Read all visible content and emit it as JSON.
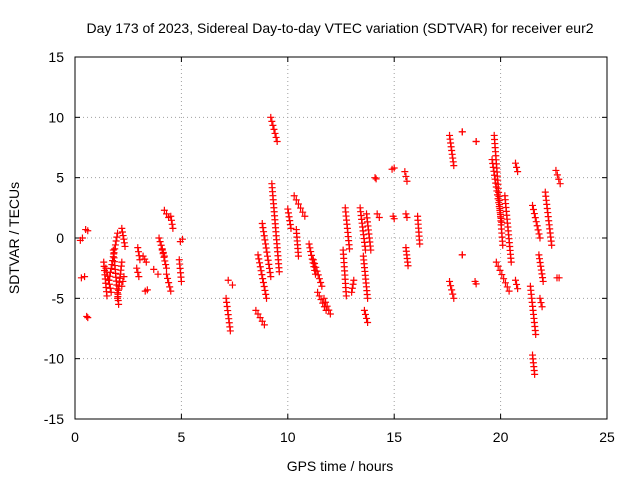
{
  "chart_data": {
    "type": "scatter",
    "title": "Day 173 of 2023, Sidereal Day-to-day VTEC variation (SDTVAR) for receiver eur2",
    "xlabel": "GPS time / hours",
    "ylabel": "SDTVAR / TECUs",
    "xlim": [
      0,
      25
    ],
    "ylim": [
      -15,
      15
    ],
    "xticks": [
      0,
      5,
      10,
      15,
      20,
      25
    ],
    "yticks": [
      -15,
      -10,
      -5,
      0,
      5,
      10,
      15
    ],
    "x_tick_labels": [
      "0",
      "5",
      "10",
      "15",
      "20",
      "25"
    ],
    "y_tick_labels": [
      "-15",
      "-10",
      "-5",
      "0",
      "5",
      "10",
      "15"
    ],
    "grid": true,
    "marker": "+",
    "series": [
      {
        "name": "SDTVAR",
        "color": "#ff0000",
        "arcs": [
          {
            "x0": 0.25,
            "x1": 0.35,
            "y0": -0.2,
            "y1": 0.0
          },
          {
            "x0": 0.3,
            "x1": 0.45,
            "y0": -3.3,
            "y1": -3.2
          },
          {
            "x0": 0.5,
            "x1": 0.6,
            "y0": 0.7,
            "y1": 0.6
          },
          {
            "x0": 0.55,
            "x1": 0.6,
            "y0": -6.5,
            "y1": -6.6
          },
          {
            "x0": 1.35,
            "x1": 1.5,
            "y0": -2.0,
            "y1": -4.8
          },
          {
            "x0": 1.45,
            "x1": 1.7,
            "y0": -2.5,
            "y1": -4.5
          },
          {
            "x0": 1.6,
            "x1": 2.0,
            "y0": -3.5,
            "y1": 0.4
          },
          {
            "x0": 1.8,
            "x1": 2.05,
            "y0": -1.0,
            "y1": -5.5
          },
          {
            "x0": 2.0,
            "x1": 2.2,
            "y0": -5.0,
            "y1": -2.0
          },
          {
            "x0": 2.2,
            "x1": 2.35,
            "y0": 0.8,
            "y1": -0.7
          },
          {
            "x0": 2.2,
            "x1": 2.3,
            "y0": -4.0,
            "y1": -3.2
          },
          {
            "x0": 2.9,
            "x1": 3.0,
            "y0": -2.5,
            "y1": -3.2
          },
          {
            "x0": 2.95,
            "x1": 3.05,
            "y0": -0.8,
            "y1": -1.8
          },
          {
            "x0": 3.2,
            "x1": 3.35,
            "y0": -1.5,
            "y1": -2.0
          },
          {
            "x0": 3.3,
            "x1": 3.4,
            "y0": -4.4,
            "y1": -4.3
          },
          {
            "x0": 3.7,
            "x1": 3.9,
            "y0": -2.6,
            "y1": -3.0
          },
          {
            "x0": 3.95,
            "x1": 4.2,
            "y0": 0.0,
            "y1": -1.5
          },
          {
            "x0": 4.1,
            "x1": 4.3,
            "y0": -1.0,
            "y1": -2.5
          },
          {
            "x0": 4.2,
            "x1": 4.4,
            "y0": 2.3,
            "y1": 1.7
          },
          {
            "x0": 4.3,
            "x1": 4.5,
            "y0": -3.0,
            "y1": -4.4
          },
          {
            "x0": 4.5,
            "x1": 4.6,
            "y0": 1.8,
            "y1": 0.8
          },
          {
            "x0": 4.9,
            "x1": 5.0,
            "y0": -1.8,
            "y1": -3.6
          },
          {
            "x0": 4.95,
            "x1": 5.05,
            "y0": -0.3,
            "y1": -0.1
          },
          {
            "x0": 7.1,
            "x1": 7.3,
            "y0": -5.0,
            "y1": -7.7
          },
          {
            "x0": 7.2,
            "x1": 7.4,
            "y0": -3.5,
            "y1": -3.9
          },
          {
            "x0": 8.5,
            "x1": 8.9,
            "y0": -6.0,
            "y1": -7.2
          },
          {
            "x0": 8.6,
            "x1": 9.0,
            "y0": -1.4,
            "y1": -5.0
          },
          {
            "x0": 8.8,
            "x1": 9.2,
            "y0": 1.2,
            "y1": -3.2
          },
          {
            "x0": 9.2,
            "x1": 9.5,
            "y0": 10.0,
            "y1": 8.0
          },
          {
            "x0": 9.25,
            "x1": 9.6,
            "y0": 4.5,
            "y1": -2.8
          },
          {
            "x0": 10.0,
            "x1": 10.15,
            "y0": 2.4,
            "y1": 0.8
          },
          {
            "x0": 10.3,
            "x1": 10.8,
            "y0": 3.5,
            "y1": 1.8
          },
          {
            "x0": 10.4,
            "x1": 10.5,
            "y0": 0.7,
            "y1": -1.5
          },
          {
            "x0": 11.0,
            "x1": 11.3,
            "y0": -0.5,
            "y1": -3.0
          },
          {
            "x0": 11.2,
            "x1": 11.6,
            "y0": -1.8,
            "y1": -4.0
          },
          {
            "x0": 11.4,
            "x1": 11.8,
            "y0": -4.5,
            "y1": -6.0
          },
          {
            "x0": 11.7,
            "x1": 12.0,
            "y0": -5.0,
            "y1": -6.3
          },
          {
            "x0": 12.6,
            "x1": 12.75,
            "y0": -1.0,
            "y1": -4.8
          },
          {
            "x0": 12.7,
            "x1": 12.9,
            "y0": 2.5,
            "y1": -0.9
          },
          {
            "x0": 13.0,
            "x1": 13.1,
            "y0": -4.5,
            "y1": -3.5
          },
          {
            "x0": 13.4,
            "x1": 13.65,
            "y0": 2.5,
            "y1": -1.0
          },
          {
            "x0": 13.55,
            "x1": 13.75,
            "y0": -1.5,
            "y1": -5.0
          },
          {
            "x0": 13.6,
            "x1": 13.75,
            "y0": -6.0,
            "y1": -7.0
          },
          {
            "x0": 13.7,
            "x1": 13.9,
            "y0": 2.0,
            "y1": -1.0
          },
          {
            "x0": 14.1,
            "x1": 14.15,
            "y0": 5.0,
            "y1": 4.9
          },
          {
            "x0": 14.2,
            "x1": 14.3,
            "y0": 2.0,
            "y1": 1.7
          },
          {
            "x0": 14.9,
            "x1": 15.0,
            "y0": 5.7,
            "y1": 5.8
          },
          {
            "x0": 14.95,
            "x1": 15.0,
            "y0": 1.8,
            "y1": 1.6
          },
          {
            "x0": 15.5,
            "x1": 15.6,
            "y0": 5.5,
            "y1": 4.7
          },
          {
            "x0": 15.55,
            "x1": 15.6,
            "y0": 2.0,
            "y1": 1.7
          },
          {
            "x0": 15.55,
            "x1": 15.65,
            "y0": -0.8,
            "y1": -2.3
          },
          {
            "x0": 16.1,
            "x1": 16.2,
            "y0": 1.8,
            "y1": -0.5
          },
          {
            "x0": 17.6,
            "x1": 17.8,
            "y0": 8.5,
            "y1": 6.0
          },
          {
            "x0": 17.6,
            "x1": 17.8,
            "y0": -3.6,
            "y1": -5.0
          },
          {
            "x0": 18.2,
            "x1": 18.2,
            "y0": 8.8,
            "y1": 8.8
          },
          {
            "x0": 18.2,
            "x1": 18.2,
            "y0": -1.4,
            "y1": -1.4
          },
          {
            "x0": 18.85,
            "x1": 18.85,
            "y0": 8.0,
            "y1": 8.0
          },
          {
            "x0": 18.8,
            "x1": 18.85,
            "y0": -3.6,
            "y1": -3.8
          },
          {
            "x0": 19.6,
            "x1": 20.05,
            "y0": 6.5,
            "y1": 1.3
          },
          {
            "x0": 19.7,
            "x1": 20.1,
            "y0": 8.5,
            "y1": -0.6
          },
          {
            "x0": 19.8,
            "x1": 20.4,
            "y0": -2.0,
            "y1": -4.4
          },
          {
            "x0": 20.2,
            "x1": 20.5,
            "y0": 3.5,
            "y1": -2.0
          },
          {
            "x0": 20.7,
            "x1": 20.8,
            "y0": 6.2,
            "y1": 5.5
          },
          {
            "x0": 20.7,
            "x1": 20.8,
            "y0": -3.5,
            "y1": -4.2
          },
          {
            "x0": 21.4,
            "x1": 21.65,
            "y0": -4.0,
            "y1": -8.0
          },
          {
            "x0": 21.5,
            "x1": 21.6,
            "y0": -9.7,
            "y1": -11.3
          },
          {
            "x0": 21.5,
            "x1": 21.85,
            "y0": 2.7,
            "y1": 0.0
          },
          {
            "x0": 21.8,
            "x1": 22.0,
            "y0": -1.4,
            "y1": -3.6
          },
          {
            "x0": 21.85,
            "x1": 21.95,
            "y0": -5.0,
            "y1": -5.7
          },
          {
            "x0": 22.1,
            "x1": 22.4,
            "y0": 3.8,
            "y1": -0.6
          },
          {
            "x0": 22.6,
            "x1": 22.8,
            "y0": 5.6,
            "y1": 4.5
          },
          {
            "x0": 22.65,
            "x1": 22.75,
            "y0": -3.3,
            "y1": -3.3
          }
        ]
      }
    ]
  }
}
